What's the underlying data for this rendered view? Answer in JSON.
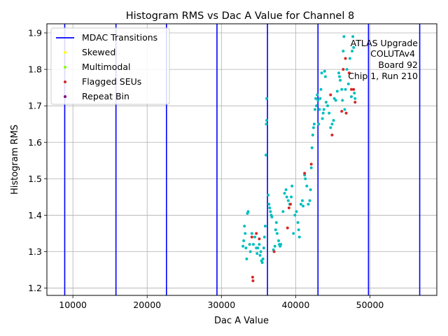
{
  "chart_data": {
    "type": "scatter",
    "title": "Histogram RMS vs Dac A Value for Channel 8",
    "xlabel": "Dac A Value",
    "ylabel": "Histogram RMS",
    "xlim": [
      6500,
      59000
    ],
    "ylim": [
      1.18,
      1.925
    ],
    "x_ticks": [
      10000,
      20000,
      30000,
      40000,
      50000
    ],
    "x_tick_labels": [
      "10000",
      "20000",
      "30000",
      "40000",
      "50000"
    ],
    "y_ticks": [
      1.2,
      1.3,
      1.4,
      1.5,
      1.6,
      1.7,
      1.8,
      1.9
    ],
    "y_tick_labels": [
      "1.2",
      "1.3",
      "1.4",
      "1.5",
      "1.6",
      "1.7",
      "1.8",
      "1.9"
    ],
    "grid": true,
    "legend_position": "top-left",
    "legend": [
      {
        "label": "MDAC Transitions",
        "kind": "line",
        "color": "#0000ff"
      },
      {
        "label": "Skewed",
        "kind": "point",
        "color": "#ffff00"
      },
      {
        "label": "Multimodal",
        "kind": "point",
        "color": "#7fff00"
      },
      {
        "label": "Flagged SEUs",
        "kind": "point",
        "color": "#d62728"
      },
      {
        "label": "Repeat Bin",
        "kind": "point",
        "color": "#800080"
      }
    ],
    "annotation_lines": [
      "ATLAS Upgrade",
      "COLUTAv4",
      "Board 92",
      "Chip 1, Run 210"
    ],
    "mdac_transitions": [
      8900,
      15800,
      22600,
      29400,
      36200,
      43000,
      49800,
      56700
    ],
    "normal_color": "#00bfbf",
    "normal_points": [
      [
        32900,
        1.315
      ],
      [
        33000,
        1.33
      ],
      [
        33100,
        1.37
      ],
      [
        33200,
        1.35
      ],
      [
        33300,
        1.31
      ],
      [
        33400,
        1.28
      ],
      [
        33500,
        1.405
      ],
      [
        33600,
        1.41
      ],
      [
        33800,
        1.32
      ],
      [
        33900,
        1.3
      ],
      [
        34100,
        1.35
      ],
      [
        34300,
        1.32
      ],
      [
        34500,
        1.34
      ],
      [
        34700,
        1.31
      ],
      [
        34800,
        1.295
      ],
      [
        34900,
        1.31
      ],
      [
        35100,
        1.32
      ],
      [
        35200,
        1.29
      ],
      [
        35300,
        1.3
      ],
      [
        35400,
        1.275
      ],
      [
        35500,
        1.27
      ],
      [
        35600,
        1.28
      ],
      [
        35700,
        1.31
      ],
      [
        35800,
        1.34
      ],
      [
        35900,
        1.37
      ],
      [
        36000,
        1.565
      ],
      [
        36050,
        1.65
      ],
      [
        36100,
        1.66
      ],
      [
        36100,
        1.72
      ],
      [
        36300,
        1.455
      ],
      [
        36400,
        1.43
      ],
      [
        36500,
        1.42
      ],
      [
        36600,
        1.41
      ],
      [
        36700,
        1.4
      ],
      [
        36800,
        1.395
      ],
      [
        37000,
        1.305
      ],
      [
        37200,
        1.315
      ],
      [
        37300,
        1.36
      ],
      [
        37400,
        1.38
      ],
      [
        37500,
        1.35
      ],
      [
        37700,
        1.33
      ],
      [
        37800,
        1.32
      ],
      [
        37900,
        1.315
      ],
      [
        38000,
        1.32
      ],
      [
        38300,
        1.41
      ],
      [
        38500,
        1.46
      ],
      [
        38700,
        1.47
      ],
      [
        38800,
        1.45
      ],
      [
        39000,
        1.44
      ],
      [
        39200,
        1.43
      ],
      [
        39400,
        1.45
      ],
      [
        39500,
        1.48
      ],
      [
        39700,
        1.35
      ],
      [
        39900,
        1.4
      ],
      [
        40100,
        1.41
      ],
      [
        40300,
        1.38
      ],
      [
        40400,
        1.36
      ],
      [
        40500,
        1.34
      ],
      [
        40700,
        1.43
      ],
      [
        40900,
        1.44
      ],
      [
        41000,
        1.425
      ],
      [
        41200,
        1.51
      ],
      [
        41300,
        1.5
      ],
      [
        41500,
        1.48
      ],
      [
        41700,
        1.43
      ],
      [
        41900,
        1.44
      ],
      [
        42000,
        1.47
      ],
      [
        42100,
        1.53
      ],
      [
        42200,
        1.585
      ],
      [
        42300,
        1.62
      ],
      [
        42400,
        1.64
      ],
      [
        42500,
        1.65
      ],
      [
        42600,
        1.69
      ],
      [
        42700,
        1.72
      ],
      [
        42800,
        1.7
      ],
      [
        42900,
        1.73
      ],
      [
        43000,
        1.715
      ],
      [
        43100,
        1.65
      ],
      [
        43200,
        1.69
      ],
      [
        43300,
        1.72
      ],
      [
        43400,
        1.745
      ],
      [
        43500,
        1.79
      ],
      [
        43600,
        1.665
      ],
      [
        43700,
        1.68
      ],
      [
        43800,
        1.69
      ],
      [
        43900,
        1.795
      ],
      [
        44000,
        1.78
      ],
      [
        44100,
        1.71
      ],
      [
        44300,
        1.7
      ],
      [
        44500,
        1.68
      ],
      [
        44700,
        1.64
      ],
      [
        44900,
        1.65
      ],
      [
        45100,
        1.66
      ],
      [
        45200,
        1.72
      ],
      [
        45400,
        1.715
      ],
      [
        45600,
        1.74
      ],
      [
        45800,
        1.79
      ],
      [
        45900,
        1.78
      ],
      [
        46000,
        1.77
      ],
      [
        46200,
        1.745
      ],
      [
        46300,
        1.715
      ],
      [
        46400,
        1.85
      ],
      [
        46500,
        1.89
      ],
      [
        46600,
        1.69
      ],
      [
        46700,
        1.745
      ],
      [
        46900,
        1.8
      ],
      [
        47100,
        1.76
      ],
      [
        47300,
        1.83
      ],
      [
        47500,
        1.725
      ],
      [
        47600,
        1.85
      ],
      [
        47700,
        1.89
      ],
      [
        47800,
        1.86
      ],
      [
        47900,
        1.735
      ],
      [
        48000,
        1.72
      ]
    ],
    "flagged_points": [
      [
        34100,
        1.34
      ],
      [
        34200,
        1.23
      ],
      [
        34250,
        1.22
      ],
      [
        34700,
        1.35
      ],
      [
        35100,
        1.335
      ],
      [
        37100,
        1.3
      ],
      [
        38900,
        1.365
      ],
      [
        39100,
        1.42
      ],
      [
        39300,
        1.43
      ],
      [
        41200,
        1.515
      ],
      [
        42100,
        1.54
      ],
      [
        44700,
        1.73
      ],
      [
        44900,
        1.62
      ],
      [
        46200,
        1.685
      ],
      [
        46400,
        1.8
      ],
      [
        46700,
        1.83
      ],
      [
        46800,
        1.68
      ],
      [
        47200,
        1.79
      ],
      [
        47500,
        1.745
      ],
      [
        47800,
        1.745
      ],
      [
        48000,
        1.71
      ]
    ],
    "flagged_color": "#d62728"
  }
}
